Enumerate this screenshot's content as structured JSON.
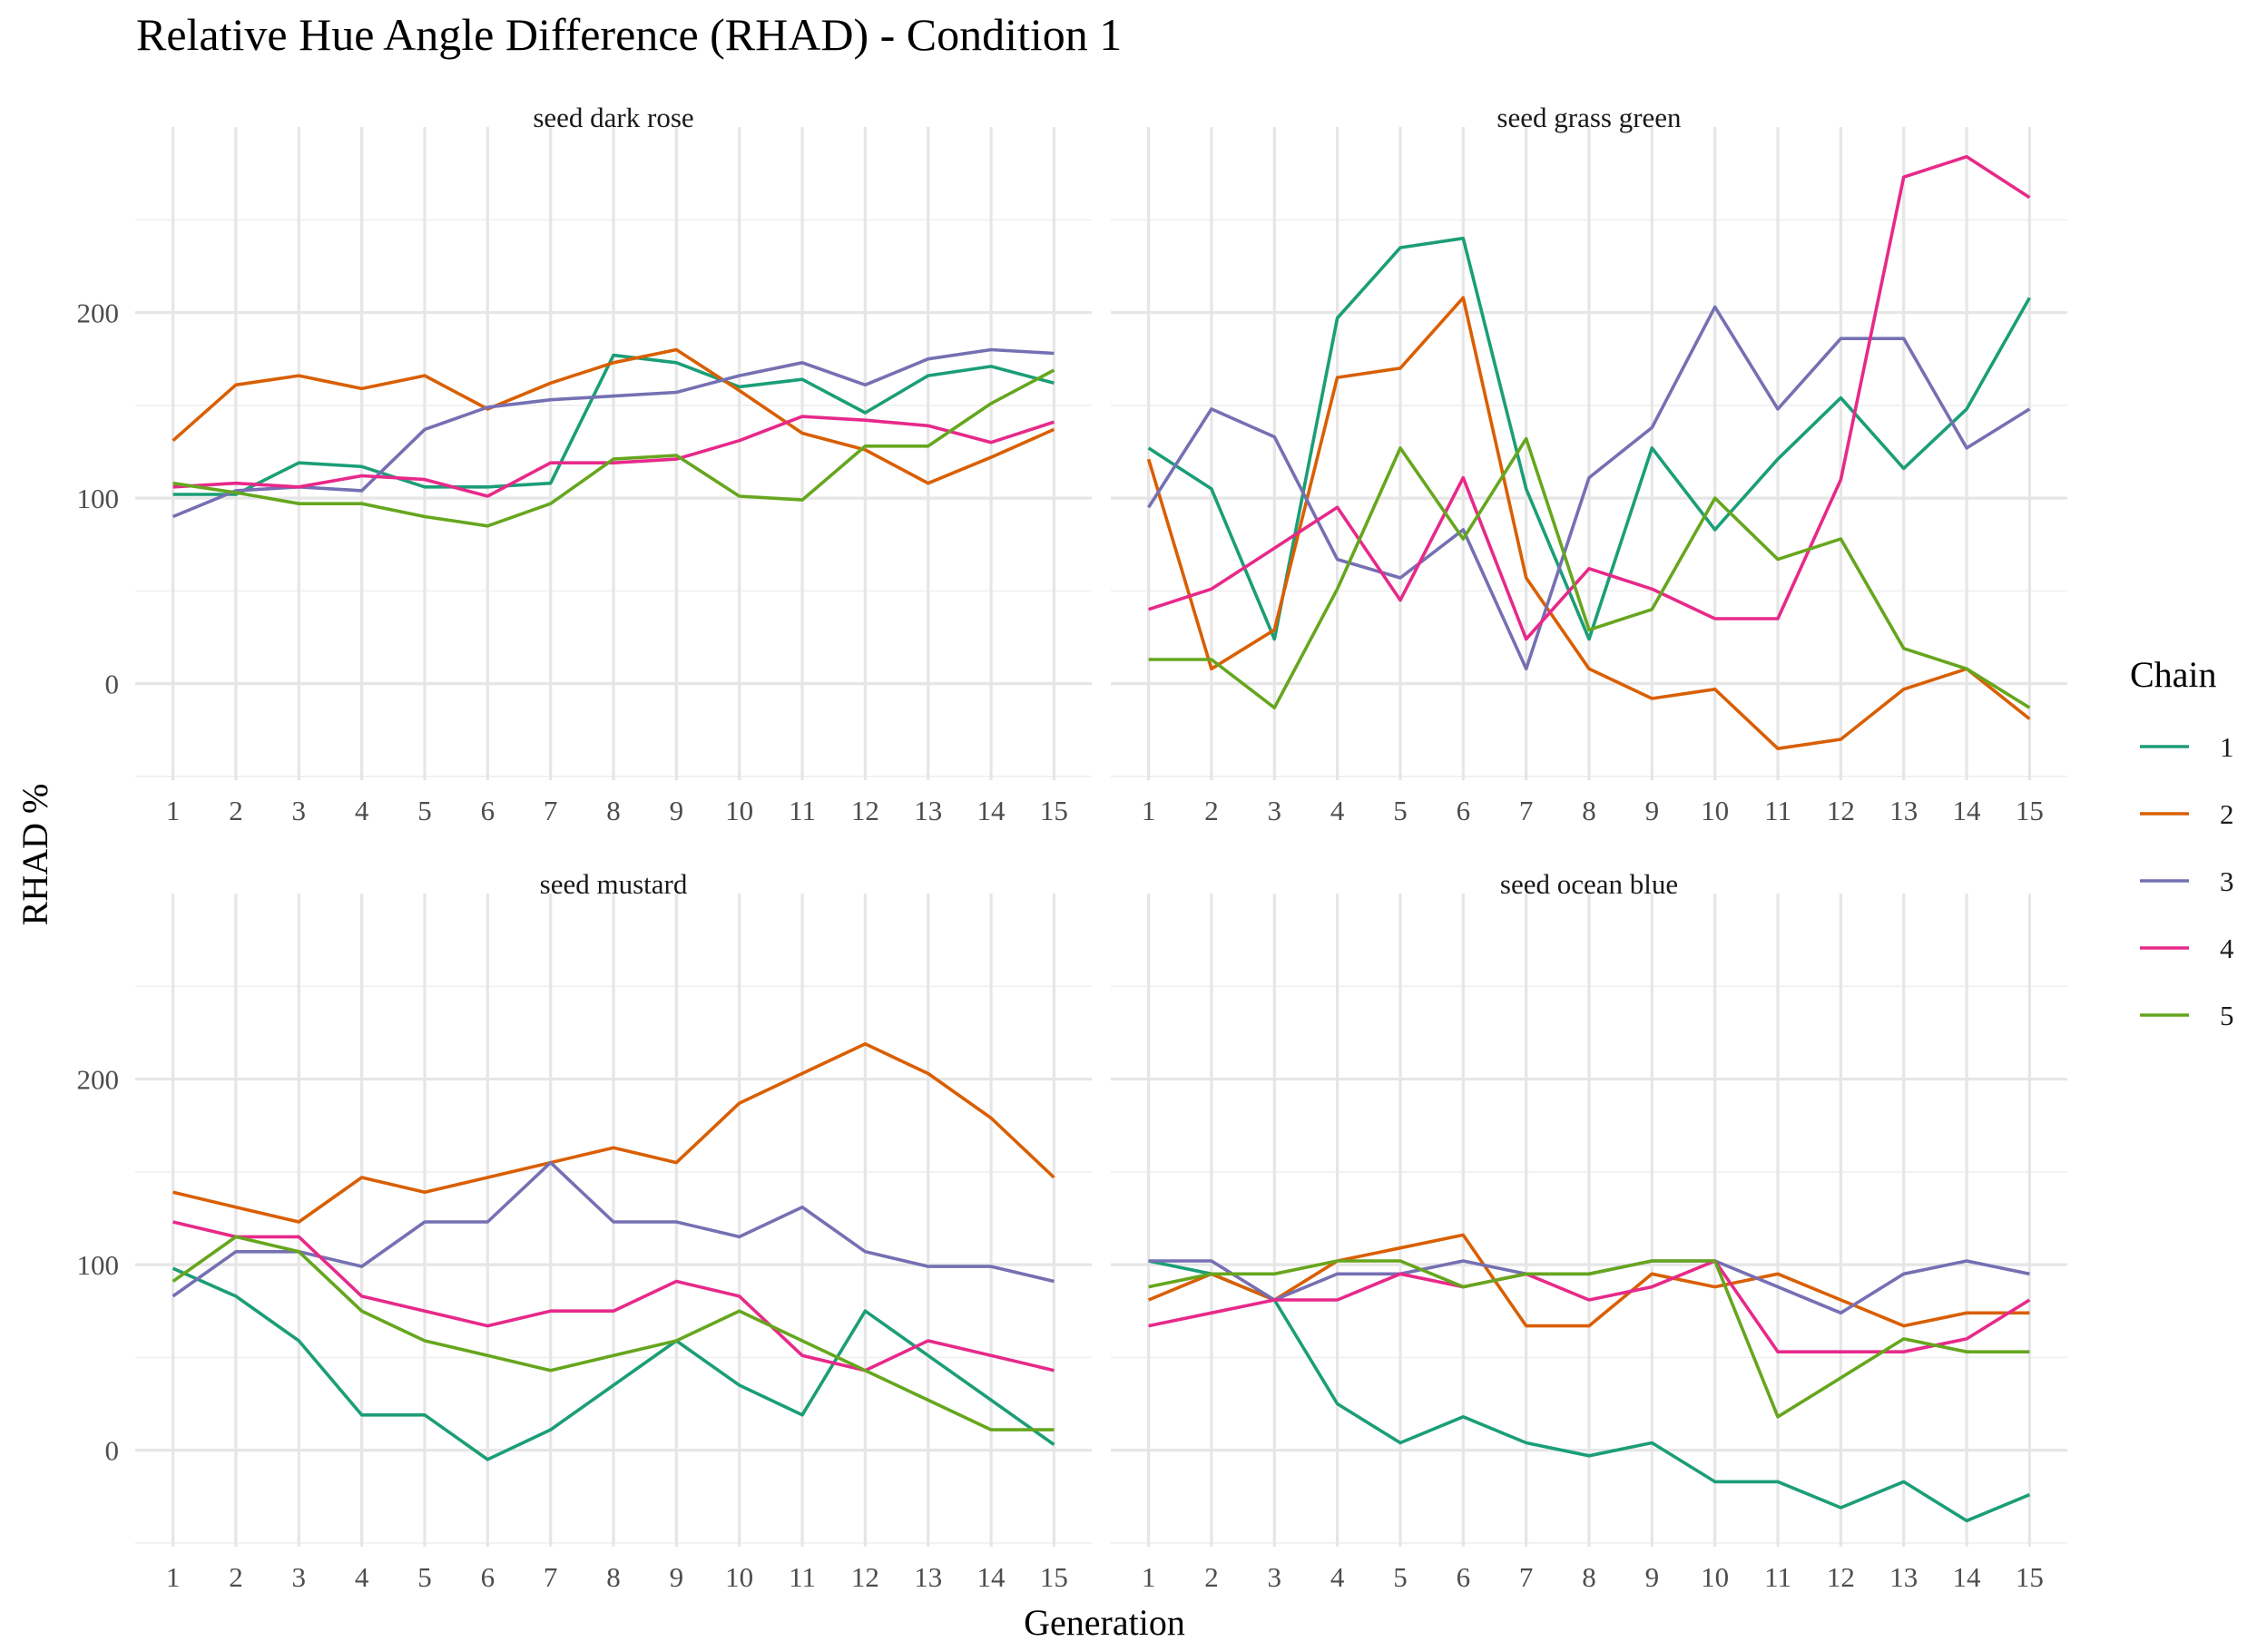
{
  "chart_data": {
    "type": "line",
    "title": "Relative Hue Angle Difference (RHAD) - Condition 1",
    "xlabel": "Generation",
    "ylabel": "RHAD %",
    "x": [
      1,
      2,
      3,
      4,
      5,
      6,
      7,
      8,
      9,
      10,
      11,
      12,
      13,
      14,
      15
    ],
    "x_tick_labels": [
      "1",
      "2",
      "3",
      "4",
      "5",
      "6",
      "7",
      "8",
      "9",
      "10",
      "11",
      "12",
      "13",
      "14",
      "15"
    ],
    "xlim": [
      0.4,
      15.6
    ],
    "ylim": [
      -52,
      300
    ],
    "y_major_ticks": [
      0,
      100,
      200
    ],
    "y_tick_labels": [
      "0",
      "100",
      "200"
    ],
    "y_minor_ticks": [
      -50,
      50,
      150,
      250
    ],
    "grid": true,
    "legend": {
      "title": "Chain",
      "position": "right",
      "entries": [
        "1",
        "2",
        "3",
        "4",
        "5"
      ]
    },
    "colors": {
      "1": "#1b9e77",
      "2": "#d95f02",
      "3": "#7570b3",
      "4": "#e7298a",
      "5": "#66a61e"
    },
    "facets": [
      {
        "label": "seed dark rose",
        "series": [
          {
            "name": "1",
            "values": [
              102,
              102,
              119,
              117,
              106,
              106,
              108,
              177,
              173,
              160,
              164,
              146,
              166,
              171,
              162
            ]
          },
          {
            "name": "2",
            "values": [
              131,
              161,
              166,
              159,
              166,
              148,
              162,
              173,
              180,
              158,
              135,
              126,
              108,
              122,
              137
            ]
          },
          {
            "name": "3",
            "values": [
              90,
              104,
              106,
              104,
              137,
              149,
              153,
              155,
              157,
              166,
              173,
              161,
              175,
              180,
              178
            ]
          },
          {
            "name": "4",
            "values": [
              106,
              108,
              106,
              112,
              110,
              101,
              119,
              119,
              121,
              131,
              144,
              142,
              139,
              130,
              141
            ]
          },
          {
            "name": "5",
            "values": [
              108,
              103,
              97,
              97,
              90,
              85,
              97,
              121,
              123,
              101,
              99,
              128,
              128,
              151,
              169
            ]
          }
        ]
      },
      {
        "label": "seed grass green",
        "series": [
          {
            "name": "1",
            "values": [
              127,
              105,
              24,
              197,
              235,
              240,
              105,
              24,
              127,
              83,
              121,
              154,
              116,
              148,
              208
            ]
          },
          {
            "name": "2",
            "values": [
              121,
              8,
              29,
              165,
              170,
              208,
              57,
              8,
              -8,
              -3,
              -35,
              -30,
              -3,
              8,
              -19
            ]
          },
          {
            "name": "3",
            "values": [
              95,
              148,
              133,
              67,
              57,
              83,
              8,
              111,
              138,
              203,
              148,
              186,
              186,
              127,
              148
            ]
          },
          {
            "name": "4",
            "values": [
              40,
              51,
              73,
              95,
              45,
              111,
              24,
              62,
              51,
              35,
              35,
              110,
              273,
              284,
              262
            ]
          },
          {
            "name": "5",
            "values": [
              13,
              13,
              -13,
              51,
              127,
              78,
              132,
              29,
              40,
              100,
              67,
              78,
              19,
              8,
              -13
            ]
          }
        ]
      },
      {
        "label": "seed mustard",
        "series": [
          {
            "name": "1",
            "values": [
              98,
              83,
              59,
              19,
              19,
              -5,
              11,
              35,
              59,
              35,
              19,
              75,
              51,
              27,
              3
            ]
          },
          {
            "name": "2",
            "values": [
              139,
              131,
              123,
              147,
              139,
              147,
              155,
              163,
              155,
              187,
              203,
              219,
              203,
              179,
              147
            ]
          },
          {
            "name": "3",
            "values": [
              83,
              107,
              107,
              99,
              123,
              123,
              155,
              123,
              123,
              115,
              131,
              107,
              99,
              99,
              91
            ]
          },
          {
            "name": "4",
            "values": [
              123,
              115,
              115,
              83,
              75,
              67,
              75,
              75,
              91,
              83,
              51,
              43,
              59,
              51,
              43
            ]
          },
          {
            "name": "5",
            "values": [
              91,
              115,
              107,
              75,
              59,
              51,
              43,
              51,
              59,
              75,
              59,
              43,
              27,
              11,
              11
            ]
          }
        ]
      },
      {
        "label": "seed ocean blue",
        "series": [
          {
            "name": "1",
            "values": [
              102,
              95,
              81,
              25,
              4,
              18,
              4,
              -3,
              4,
              -17,
              -17,
              -31,
              -17,
              -38,
              -24
            ]
          },
          {
            "name": "2",
            "values": [
              81,
              95,
              81,
              102,
              109,
              116,
              67,
              67,
              95,
              88,
              95,
              81,
              67,
              74,
              74
            ]
          },
          {
            "name": "3",
            "values": [
              102,
              102,
              81,
              95,
              95,
              102,
              95,
              95,
              102,
              102,
              88,
              74,
              95,
              102,
              95
            ]
          },
          {
            "name": "4",
            "values": [
              67,
              74,
              81,
              81,
              95,
              88,
              95,
              81,
              88,
              102,
              53,
              53,
              53,
              60,
              81
            ]
          },
          {
            "name": "5",
            "values": [
              88,
              95,
              95,
              102,
              102,
              88,
              95,
              95,
              102,
              102,
              18,
              39,
              60,
              53,
              53
            ]
          }
        ]
      }
    ]
  }
}
